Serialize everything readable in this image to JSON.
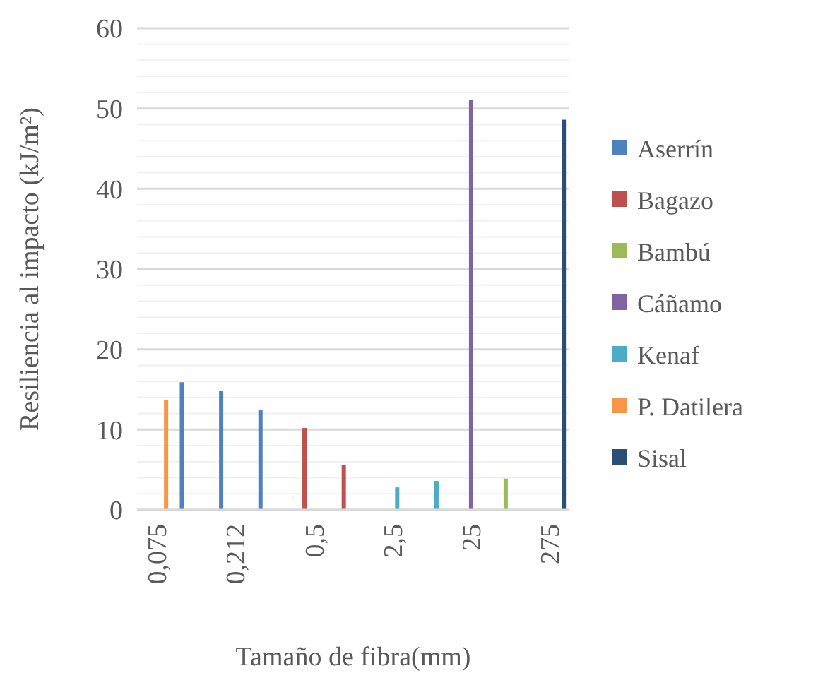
{
  "chart_data": {
    "type": "bar",
    "xlabel": "Tamaño de fibra(mm)",
    "ylabel": "Resiliencia al impacto (kJ/m²)",
    "categories": [
      "0,075",
      null,
      "0,212",
      null,
      "0,5",
      null,
      "2,5",
      null,
      "25",
      null,
      "275"
    ],
    "series": [
      {
        "name": "Aserrín",
        "color": "#4f81bd",
        "values": [
          null,
          15.9,
          14.8,
          12.4,
          null,
          null,
          null,
          null,
          null,
          null,
          null
        ]
      },
      {
        "name": "Bagazo",
        "color": "#c0504d",
        "values": [
          null,
          null,
          null,
          null,
          10.2,
          5.6,
          null,
          null,
          null,
          null,
          null
        ]
      },
      {
        "name": "Bambú",
        "color": "#9bbb59",
        "values": [
          null,
          null,
          null,
          null,
          null,
          null,
          null,
          null,
          null,
          3.9,
          null
        ]
      },
      {
        "name": "Cáñamo",
        "color": "#8064a2",
        "values": [
          null,
          null,
          null,
          null,
          null,
          null,
          null,
          null,
          51.1,
          null,
          null
        ]
      },
      {
        "name": "Kenaf",
        "color": "#4bacc6",
        "values": [
          null,
          null,
          null,
          null,
          null,
          null,
          2.8,
          3.6,
          null,
          null,
          null
        ]
      },
      {
        "name": "P. Datilera",
        "color": "#f79646",
        "values": [
          13.7,
          null,
          null,
          null,
          null,
          null,
          null,
          null,
          null,
          null,
          null
        ]
      },
      {
        "name": "Sisal",
        "color": "#2c4d75",
        "values": [
          null,
          null,
          null,
          null,
          null,
          null,
          null,
          null,
          null,
          null,
          48.6
        ]
      }
    ],
    "ylim": [
      0,
      60
    ],
    "yticks": [
      0,
      {
        "value": 2,
        "label": null
      },
      {
        "value": 4,
        "label": null
      },
      {
        "value": 6,
        "label": null
      },
      {
        "value": 8,
        "label": null
      },
      10,
      {
        "value": 12,
        "label": null
      },
      {
        "value": 14,
        "label": null
      },
      {
        "value": 16,
        "label": null
      },
      {
        "value": 18,
        "label": null
      },
      20,
      {
        "value": 22,
        "label": null
      },
      {
        "value": 24,
        "label": null
      },
      {
        "value": 26,
        "label": null
      },
      {
        "value": 28,
        "label": null
      },
      30,
      {
        "value": 32,
        "label": null
      },
      {
        "value": 34,
        "label": null
      },
      {
        "value": 36,
        "label": null
      },
      {
        "value": 38,
        "label": null
      },
      40,
      {
        "value": 42,
        "label": null
      },
      {
        "value": 44,
        "label": null
      },
      {
        "value": 46,
        "label": null
      },
      {
        "value": 48,
        "label": null
      },
      50,
      {
        "value": 52,
        "label": null
      },
      {
        "value": 54,
        "label": null
      },
      {
        "value": 56,
        "label": null
      },
      {
        "value": 58,
        "label": null
      },
      60
    ],
    "grid": "y",
    "legend": "right"
  }
}
